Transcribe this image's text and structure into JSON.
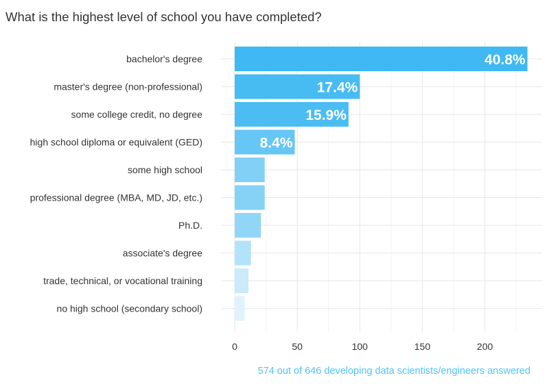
{
  "chart_data": {
    "type": "bar",
    "orientation": "horizontal",
    "title": "What is the highest level of school you have completed?",
    "caption": "574 out of 646 developing data scientists/engineers answered",
    "categories": [
      "bachelor's degree",
      "master's degree (non-professional)",
      "some college credit, no degree",
      "high school diploma or equivalent (GED)",
      "some high school",
      "professional degree (MBA, MD, JD, etc.)",
      "Ph.D.",
      "associate's degree",
      "trade, technical, or vocational training",
      "no high school (secondary school)"
    ],
    "values": [
      234,
      100,
      91,
      48,
      24,
      24,
      21,
      13,
      11,
      8
    ],
    "data_labels": [
      "40.8%",
      "17.4%",
      "15.9%",
      "8.4%",
      "",
      "",
      "",
      "",
      "",
      ""
    ],
    "xlim": [
      0,
      235
    ],
    "x_ticks": [
      0,
      50,
      100,
      150,
      200
    ],
    "grid": true,
    "bar_colors": [
      "#3fb8f3",
      "#47bcf3",
      "#4cbdf3",
      "#66c6f5",
      "#82d0f6",
      "#86d2f6",
      "#92d6f7",
      "#b3e3fa",
      "#c9ebfb",
      "#dff3fd"
    ]
  }
}
